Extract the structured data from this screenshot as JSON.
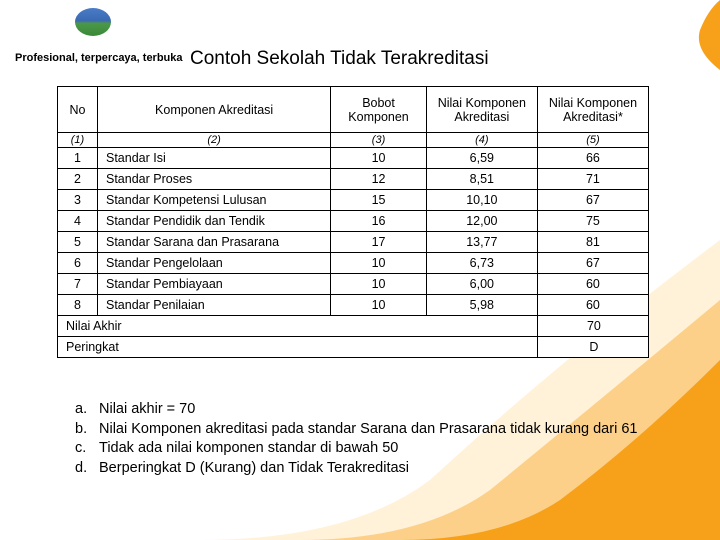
{
  "tagline": "Profesional, terpercaya, terbuka",
  "title": "Contoh Sekolah Tidak Terakreditasi",
  "table": {
    "headers": [
      "No",
      "Komponen Akreditasi",
      "Bobot Komponen",
      "Nilai Komponen Akreditasi",
      "Nilai Komponen Akreditasi*"
    ],
    "index_row": [
      "(1)",
      "(2)",
      "(3)",
      "(4)",
      "(5)"
    ],
    "rows": [
      {
        "no": "1",
        "komp": "Standar Isi",
        "bobot": "10",
        "n1": "6,59",
        "n2": "66"
      },
      {
        "no": "2",
        "komp": "Standar Proses",
        "bobot": "12",
        "n1": "8,51",
        "n2": "71"
      },
      {
        "no": "3",
        "komp": "Standar Kompetensi Lulusan",
        "bobot": "15",
        "n1": "10,10",
        "n2": "67"
      },
      {
        "no": "4",
        "komp": "Standar Pendidik dan Tendik",
        "bobot": "16",
        "n1": "12,00",
        "n2": "75"
      },
      {
        "no": "5",
        "komp": "Standar Sarana dan Prasarana",
        "bobot": "17",
        "n1": "13,77",
        "n2": "81"
      },
      {
        "no": "6",
        "komp": "Standar Pengelolaan",
        "bobot": "10",
        "n1": "6,73",
        "n2": "67"
      },
      {
        "no": "7",
        "komp": "Standar Pembiayaan",
        "bobot": "10",
        "n1": "6,00",
        "n2": "60"
      },
      {
        "no": "8",
        "komp": "Standar Penilaian",
        "bobot": "10",
        "n1": "5,98",
        "n2": "60"
      }
    ],
    "summary": [
      {
        "label": "Nilai Akhir",
        "val": "70"
      },
      {
        "label": "Peringkat",
        "val": "D"
      }
    ]
  },
  "notes": [
    {
      "lbl": "a.",
      "text": "Nilai akhir = 70"
    },
    {
      "lbl": "b.",
      "text": "Nilai Komponen akreditasi pada standar Sarana dan Prasarana tidak kurang dari 61"
    },
    {
      "lbl": "c.",
      "text": "Tidak ada nilai komponen standar di bawah 50"
    },
    {
      "lbl": "d.",
      "text": "Berperingkat D (Kurang) dan Tidak Terakreditasi"
    }
  ],
  "colors": {
    "swoosh_outer": "#f7a11b",
    "swoosh_inner": "#fdd08a",
    "swoosh_light": "#fff2d9"
  }
}
